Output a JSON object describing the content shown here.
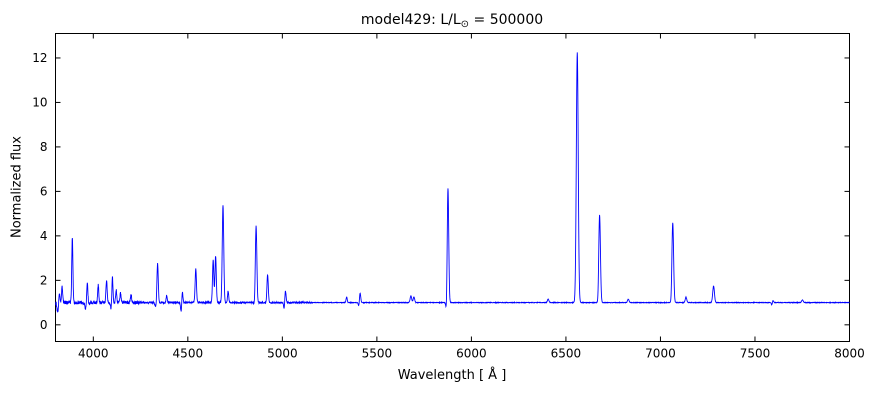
{
  "figure": {
    "title_prefix": "model429: L/L",
    "title_sub": "⊙",
    "title_suffix": " = 500000",
    "xlabel": "Wavelength [ Å ]",
    "ylabel": "Normalized flux"
  },
  "chart_data": {
    "type": "line",
    "title": "model429: L/L⊙ = 500000",
    "xlabel": "Wavelength [ Å ]",
    "ylabel": "Normalized flux",
    "xlim": [
      3800,
      8000
    ],
    "ylim": [
      -0.75,
      13.1
    ],
    "xticks": [
      4000,
      4500,
      5000,
      5500,
      6000,
      6500,
      7000,
      7500,
      8000
    ],
    "yticks": [
      0,
      2,
      4,
      6,
      8,
      10,
      12
    ],
    "continuum": 1.0,
    "line_color": "#0000ff",
    "axis_color": "#000000",
    "background": "#ffffff",
    "tick_length": 5,
    "emission_lines": [
      {
        "wavelength": 3820,
        "peak": 1.45,
        "sigma": 3
      },
      {
        "wavelength": 3835,
        "peak": 1.7,
        "sigma": 3
      },
      {
        "wavelength": 3889,
        "peak": 3.95,
        "sigma": 3
      },
      {
        "wavelength": 3968,
        "peak": 1.9,
        "sigma": 3
      },
      {
        "wavelength": 4026,
        "peak": 1.8,
        "sigma": 3
      },
      {
        "wavelength": 4070,
        "peak": 2.0,
        "sigma": 3
      },
      {
        "wavelength": 4101,
        "peak": 2.2,
        "sigma": 3
      },
      {
        "wavelength": 4121,
        "peak": 1.6,
        "sigma": 3
      },
      {
        "wavelength": 4144,
        "peak": 1.4,
        "sigma": 3
      },
      {
        "wavelength": 4200,
        "peak": 1.35,
        "sigma": 3
      },
      {
        "wavelength": 4340,
        "peak": 2.75,
        "sigma": 3.5
      },
      {
        "wavelength": 4388,
        "peak": 1.3,
        "sigma": 3
      },
      {
        "wavelength": 4471,
        "peak": 1.5,
        "sigma": 3
      },
      {
        "wavelength": 4542,
        "peak": 2.5,
        "sigma": 3.5
      },
      {
        "wavelength": 4634,
        "peak": 2.9,
        "sigma": 3.5
      },
      {
        "wavelength": 4647,
        "peak": 3.1,
        "sigma": 3.5
      },
      {
        "wavelength": 4686,
        "peak": 5.35,
        "sigma": 4
      },
      {
        "wavelength": 4713,
        "peak": 1.5,
        "sigma": 3
      },
      {
        "wavelength": 4861,
        "peak": 4.5,
        "sigma": 4
      },
      {
        "wavelength": 4922,
        "peak": 2.25,
        "sigma": 3.5
      },
      {
        "wavelength": 5016,
        "peak": 1.55,
        "sigma": 3.5
      },
      {
        "wavelength": 5340,
        "peak": 1.25,
        "sigma": 3
      },
      {
        "wavelength": 5411,
        "peak": 1.45,
        "sigma": 3.5
      },
      {
        "wavelength": 5680,
        "peak": 1.3,
        "sigma": 4
      },
      {
        "wavelength": 5696,
        "peak": 1.25,
        "sigma": 4
      },
      {
        "wavelength": 5876,
        "peak": 6.2,
        "sigma": 4
      },
      {
        "wavelength": 6406,
        "peak": 1.15,
        "sigma": 4
      },
      {
        "wavelength": 6560,
        "peak": 12.25,
        "sigma": 5
      },
      {
        "wavelength": 6678,
        "peak": 4.95,
        "sigma": 4.5
      },
      {
        "wavelength": 6830,
        "peak": 1.15,
        "sigma": 4
      },
      {
        "wavelength": 7065,
        "peak": 4.6,
        "sigma": 4.5
      },
      {
        "wavelength": 7135,
        "peak": 1.25,
        "sigma": 4
      },
      {
        "wavelength": 7281,
        "peak": 1.75,
        "sigma": 4.5
      },
      {
        "wavelength": 7593,
        "peak": 1.15,
        "sigma": 4
      },
      {
        "wavelength": 7751,
        "peak": 1.12,
        "sigma": 4
      }
    ],
    "absorption_dips": [
      {
        "wavelength": 3812,
        "depth": 0.55,
        "sigma": 4
      },
      {
        "wavelength": 3960,
        "depth": 0.7,
        "sigma": 4
      },
      {
        "wavelength": 4095,
        "depth": 0.7,
        "sigma": 4
      },
      {
        "wavelength": 4330,
        "depth": 0.8,
        "sigma": 4
      },
      {
        "wavelength": 4465,
        "depth": 0.55,
        "sigma": 3
      },
      {
        "wavelength": 4855,
        "depth": 0.8,
        "sigma": 4
      },
      {
        "wavelength": 5010,
        "depth": 0.65,
        "sigma": 3
      },
      {
        "wavelength": 5405,
        "depth": 0.8,
        "sigma": 3
      },
      {
        "wavelength": 5869,
        "depth": 0.45,
        "sigma": 3.5
      },
      {
        "wavelength": 6671,
        "depth": 0.75,
        "sigma": 3
      },
      {
        "wavelength": 7058,
        "depth": 0.8,
        "sigma": 3
      },
      {
        "wavelength": 7590,
        "depth": 0.8,
        "sigma": 3
      }
    ],
    "noise_regions": [
      {
        "range": [
          3800,
          4250
        ],
        "amplitude": 0.075
      },
      {
        "range": [
          4250,
          4750
        ],
        "amplitude": 0.04
      },
      {
        "range": [
          4750,
          5150
        ],
        "amplitude": 0.03
      },
      {
        "range": [
          5150,
          8000
        ],
        "amplitude": 0.013
      }
    ]
  }
}
